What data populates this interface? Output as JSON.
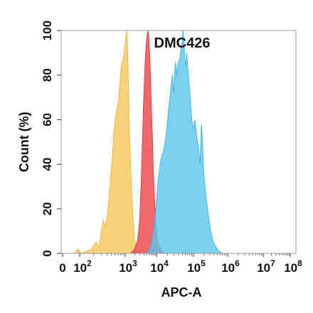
{
  "chart_data": {
    "type": "area",
    "title": "DMC426",
    "xlabel": "APC-A",
    "ylabel": "Count  (%)",
    "x_scale": "biexponential-log",
    "xlim": [
      0,
      100000000
    ],
    "ylim": [
      0,
      100
    ],
    "x_ticks": [
      {
        "base": "0",
        "exp": ""
      },
      {
        "base": "10",
        "exp": "2"
      },
      {
        "base": "10",
        "exp": "3"
      },
      {
        "base": "10",
        "exp": "4"
      },
      {
        "base": "10",
        "exp": "5"
      },
      {
        "base": "10",
        "exp": "6"
      },
      {
        "base": "10",
        "exp": "7"
      },
      {
        "base": "10",
        "exp": "8"
      }
    ],
    "x_tick_values": [
      0,
      100,
      1000,
      10000,
      100000,
      1000000,
      10000000,
      100000000
    ],
    "y_ticks": [
      "0",
      "20",
      "40",
      "60",
      "80",
      "100"
    ],
    "y_tick_values": [
      0,
      20,
      40,
      60,
      80,
      100
    ],
    "series": [
      {
        "color": "#f7c964",
        "stroke": "#e8b040",
        "opacity": 0.85,
        "points": [
          [
            70,
            0
          ],
          [
            90,
            2
          ],
          [
            110,
            0
          ],
          [
            180,
            2
          ],
          [
            230,
            5
          ],
          [
            270,
            3
          ],
          [
            300,
            10
          ],
          [
            330,
            15
          ],
          [
            360,
            12
          ],
          [
            400,
            16
          ],
          [
            440,
            25
          ],
          [
            480,
            35
          ],
          [
            520,
            43
          ],
          [
            560,
            54
          ],
          [
            600,
            60
          ],
          [
            640,
            64
          ],
          [
            680,
            66
          ],
          [
            720,
            70
          ],
          [
            770,
            78
          ],
          [
            830,
            85
          ],
          [
            880,
            86
          ],
          [
            920,
            88
          ],
          [
            980,
            93
          ],
          [
            1030,
            96
          ],
          [
            1080,
            99
          ],
          [
            1120,
            100
          ],
          [
            1160,
            96
          ],
          [
            1220,
            88
          ],
          [
            1280,
            72
          ],
          [
            1350,
            58
          ],
          [
            1420,
            48
          ],
          [
            1500,
            38
          ],
          [
            1600,
            28
          ],
          [
            1700,
            22
          ],
          [
            1800,
            15
          ],
          [
            1900,
            10
          ],
          [
            2000,
            6
          ],
          [
            2200,
            3
          ],
          [
            2500,
            1
          ],
          [
            3000,
            0
          ]
        ]
      },
      {
        "color": "#ee4d52",
        "stroke": "#d0353b",
        "opacity": 0.85,
        "points": [
          [
            1500,
            0
          ],
          [
            2000,
            2
          ],
          [
            2500,
            6
          ],
          [
            2900,
            15
          ],
          [
            3200,
            30
          ],
          [
            3500,
            48
          ],
          [
            3800,
            65
          ],
          [
            4100,
            78
          ],
          [
            4400,
            88
          ],
          [
            4700,
            94
          ],
          [
            5000,
            98
          ],
          [
            5300,
            100
          ],
          [
            5600,
            98
          ],
          [
            5900,
            94
          ],
          [
            6200,
            86
          ],
          [
            6600,
            74
          ],
          [
            7000,
            62
          ],
          [
            7500,
            50
          ],
          [
            8000,
            36
          ],
          [
            8700,
            24
          ],
          [
            9500,
            14
          ],
          [
            10500,
            7
          ],
          [
            12000,
            3
          ],
          [
            14000,
            1
          ],
          [
            16000,
            0
          ]
        ]
      },
      {
        "color": "#5bc5ec",
        "stroke": "#3aa9d6",
        "opacity": 0.8,
        "points": [
          [
            5000,
            0
          ],
          [
            6500,
            3
          ],
          [
            8000,
            10
          ],
          [
            9500,
            20
          ],
          [
            11000,
            32
          ],
          [
            12500,
            40
          ],
          [
            14000,
            44
          ],
          [
            15500,
            46
          ],
          [
            17000,
            50
          ],
          [
            19000,
            56
          ],
          [
            21000,
            64
          ],
          [
            23000,
            70
          ],
          [
            25000,
            76
          ],
          [
            27000,
            80
          ],
          [
            29000,
            72
          ],
          [
            31000,
            82
          ],
          [
            33000,
            86
          ],
          [
            35000,
            80
          ],
          [
            37000,
            84
          ],
          [
            40000,
            86
          ],
          [
            43000,
            88
          ],
          [
            46000,
            92
          ],
          [
            49000,
            94
          ],
          [
            52000,
            100
          ],
          [
            55000,
            96
          ],
          [
            58000,
            88
          ],
          [
            62000,
            84
          ],
          [
            66000,
            90
          ],
          [
            70000,
            84
          ],
          [
            76000,
            76
          ],
          [
            82000,
            70
          ],
          [
            90000,
            60
          ],
          [
            98000,
            56
          ],
          [
            110000,
            60
          ],
          [
            125000,
            52
          ],
          [
            140000,
            48
          ],
          [
            155000,
            40
          ],
          [
            170000,
            58
          ],
          [
            185000,
            50
          ],
          [
            200000,
            36
          ],
          [
            230000,
            26
          ],
          [
            270000,
            18
          ],
          [
            320000,
            10
          ],
          [
            380000,
            5
          ],
          [
            450000,
            3
          ],
          [
            550000,
            1
          ],
          [
            700000,
            0
          ]
        ]
      }
    ]
  }
}
